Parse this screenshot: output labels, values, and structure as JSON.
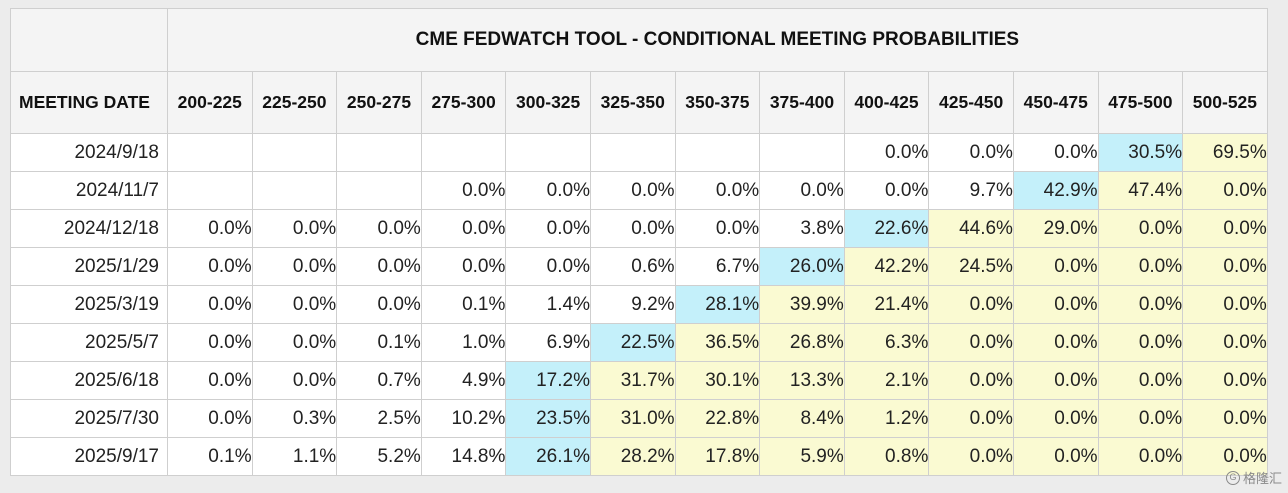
{
  "table": {
    "title": "CME FEDWATCH TOOL - CONDITIONAL MEETING PROBABILITIES",
    "date_header": "MEETING DATE",
    "columns": [
      "200-225",
      "225-250",
      "250-275",
      "275-300",
      "300-325",
      "325-350",
      "350-375",
      "375-400",
      "400-425",
      "425-450",
      "450-475",
      "475-500",
      "500-525"
    ],
    "rows": [
      {
        "date": "2024/9/18",
        "values": [
          "",
          "",
          "",
          "",
          "",
          "",
          "",
          "",
          "0.0%",
          "0.0%",
          "0.0%",
          "30.5%",
          "69.5%"
        ]
      },
      {
        "date": "2024/11/7",
        "values": [
          "",
          "",
          "",
          "0.0%",
          "0.0%",
          "0.0%",
          "0.0%",
          "0.0%",
          "0.0%",
          "9.7%",
          "42.9%",
          "47.4%",
          "0.0%"
        ]
      },
      {
        "date": "2024/12/18",
        "values": [
          "0.0%",
          "0.0%",
          "0.0%",
          "0.0%",
          "0.0%",
          "0.0%",
          "0.0%",
          "3.8%",
          "22.6%",
          "44.6%",
          "29.0%",
          "0.0%",
          "0.0%"
        ]
      },
      {
        "date": "2025/1/29",
        "values": [
          "0.0%",
          "0.0%",
          "0.0%",
          "0.0%",
          "0.0%",
          "0.6%",
          "6.7%",
          "26.0%",
          "42.2%",
          "24.5%",
          "0.0%",
          "0.0%",
          "0.0%"
        ]
      },
      {
        "date": "2025/3/19",
        "values": [
          "0.0%",
          "0.0%",
          "0.0%",
          "0.1%",
          "1.4%",
          "9.2%",
          "28.1%",
          "39.9%",
          "21.4%",
          "0.0%",
          "0.0%",
          "0.0%",
          "0.0%"
        ]
      },
      {
        "date": "2025/5/7",
        "values": [
          "0.0%",
          "0.0%",
          "0.1%",
          "1.0%",
          "6.9%",
          "22.5%",
          "36.5%",
          "26.8%",
          "6.3%",
          "0.0%",
          "0.0%",
          "0.0%",
          "0.0%"
        ]
      },
      {
        "date": "2025/6/18",
        "values": [
          "0.0%",
          "0.0%",
          "0.7%",
          "4.9%",
          "17.2%",
          "31.7%",
          "30.1%",
          "13.3%",
          "2.1%",
          "0.0%",
          "0.0%",
          "0.0%",
          "0.0%"
        ]
      },
      {
        "date": "2025/7/30",
        "values": [
          "0.0%",
          "0.3%",
          "2.5%",
          "10.2%",
          "23.5%",
          "31.0%",
          "22.8%",
          "8.4%",
          "1.2%",
          "0.0%",
          "0.0%",
          "0.0%",
          "0.0%"
        ]
      },
      {
        "date": "2025/9/17",
        "values": [
          "0.1%",
          "1.1%",
          "5.2%",
          "14.8%",
          "26.1%",
          "28.2%",
          "17.8%",
          "5.9%",
          "0.8%",
          "0.0%",
          "0.0%",
          "0.0%",
          "0.0%"
        ]
      }
    ],
    "highlight_max_col": [
      12,
      11,
      9,
      8,
      7,
      6,
      5,
      5,
      5
    ],
    "highlight_pale_from": [
      13,
      12,
      10,
      9,
      8,
      7,
      6,
      6,
      6
    ]
  },
  "colors": {
    "max_highlight": "#c4f0fa",
    "pale_highlight": "#fafad2"
  },
  "watermark": {
    "logo": "G",
    "text": "格隆汇"
  }
}
